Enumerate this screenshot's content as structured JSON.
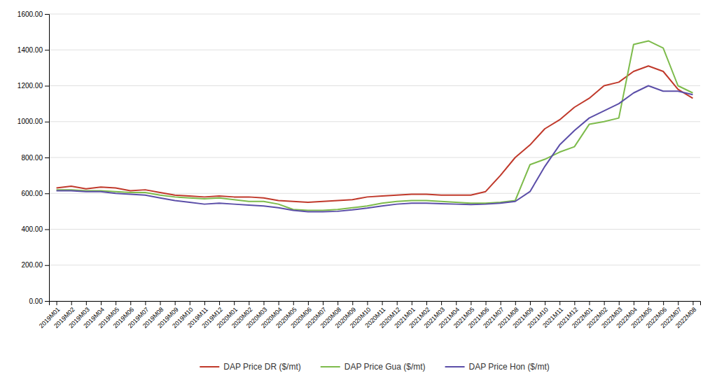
{
  "chart_data": {
    "type": "line",
    "categories": [
      "2019M01",
      "2019M02",
      "2019M03",
      "2019M04",
      "2019M05",
      "2019M06",
      "2019M07",
      "2019M08",
      "2019M09",
      "2019M10",
      "2019M11",
      "2019M12",
      "2020M01",
      "2020M02",
      "2020M03",
      "2020M04",
      "2020M05",
      "2020M06",
      "2020M07",
      "2020M08",
      "2020M09",
      "2020M10",
      "2020M11",
      "2020M12",
      "2021M01",
      "2021M02",
      "2021M03",
      "2021M04",
      "2021M05",
      "2021M06",
      "2021M07",
      "2021M08",
      "2021M09",
      "2021M10",
      "2021M11",
      "2021M12",
      "2022M01",
      "2022M02",
      "2022M03",
      "2022M04",
      "2022M05",
      "2022M06",
      "2022M07",
      "2022M08"
    ],
    "series": [
      {
        "name": "DAP Price DR ($/mt)",
        "color": "#c0392b",
        "values": [
          630,
          640,
          625,
          635,
          630,
          615,
          620,
          605,
          590,
          585,
          580,
          585,
          580,
          580,
          575,
          560,
          555,
          550,
          555,
          560,
          565,
          580,
          585,
          590,
          595,
          595,
          590,
          590,
          590,
          610,
          700,
          800,
          870,
          960,
          1010,
          1080,
          1130,
          1200,
          1220,
          1280,
          1310,
          1280,
          1180,
          1130
        ]
      },
      {
        "name": "DAP Price Gua ($/mt)",
        "color": "#7dbb4b",
        "values": [
          620,
          620,
          615,
          615,
          610,
          605,
          605,
          590,
          580,
          575,
          570,
          575,
          565,
          555,
          555,
          540,
          510,
          505,
          505,
          510,
          520,
          530,
          545,
          555,
          560,
          560,
          555,
          550,
          545,
          545,
          550,
          560,
          760,
          790,
          830,
          860,
          985,
          1000,
          1020,
          1430,
          1450,
          1410,
          1200,
          1160
        ]
      },
      {
        "name": "DAP Price Hon ($/mt)",
        "color": "#5b4ea8",
        "values": [
          615,
          615,
          610,
          610,
          600,
          595,
          590,
          575,
          560,
          550,
          540,
          545,
          540,
          535,
          530,
          520,
          505,
          498,
          498,
          500,
          508,
          518,
          530,
          540,
          545,
          545,
          542,
          540,
          538,
          540,
          545,
          555,
          610,
          750,
          870,
          950,
          1020,
          1060,
          1100,
          1160,
          1200,
          1170,
          1170,
          1150
        ]
      }
    ],
    "ylim": [
      0,
      1600
    ],
    "yticks": [
      {
        "value": 0,
        "label": "0.00"
      },
      {
        "value": 200,
        "label": "200.00"
      },
      {
        "value": 400,
        "label": "400.00"
      },
      {
        "value": 600,
        "label": "600.00"
      },
      {
        "value": 800,
        "label": "800.00"
      },
      {
        "value": 1000,
        "label": "1000.00"
      },
      {
        "value": 1200,
        "label": "1200.00"
      },
      {
        "value": 1400,
        "label": "1400.00"
      },
      {
        "value": 1600,
        "label": "1600.00"
      }
    ],
    "grid": true,
    "legend": "bottom"
  }
}
